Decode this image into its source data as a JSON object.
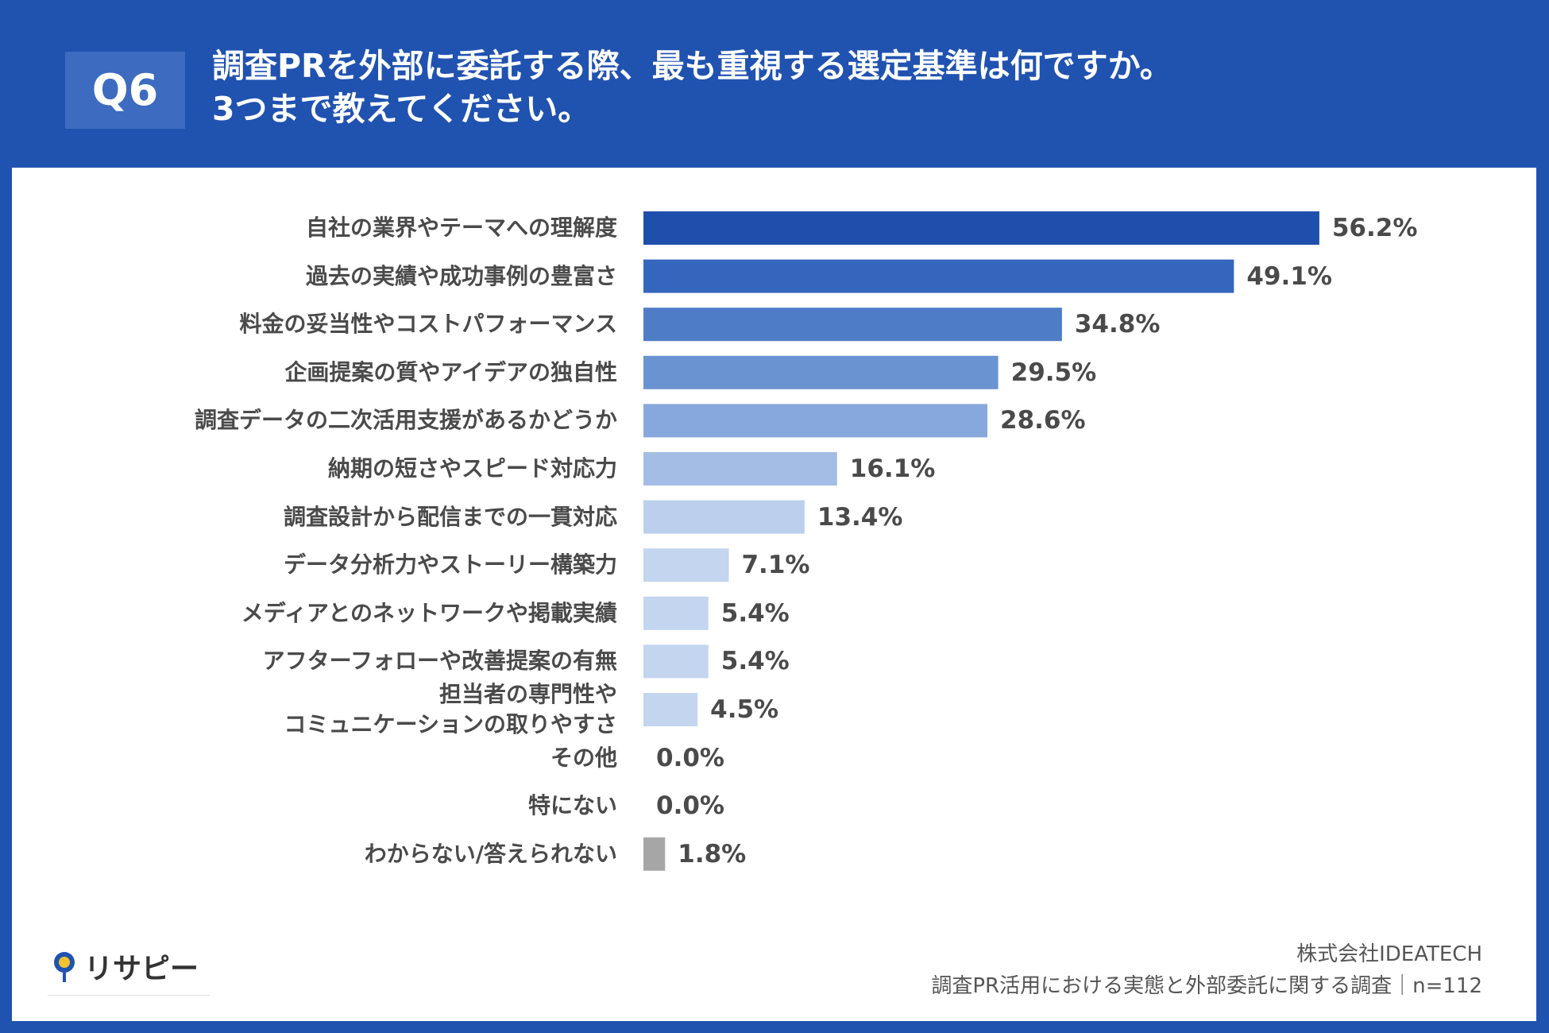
{
  "header": {
    "badge": "Q6",
    "title": "調査PRを外部に委託する際、最も重視する選定基準は何ですか。\n3つまで教えてください。"
  },
  "chart_data": {
    "type": "bar",
    "orientation": "horizontal",
    "categories": [
      "自社の業界やテーマへの理解度",
      "過去の実績や成功事例の豊富さ",
      "料金の妥当性やコストパフォーマンス",
      "企画提案の質やアイデアの独自性",
      "調査データの二次活用支援があるかどうか",
      "納期の短さやスピード対応力",
      "調査設計から配信までの一貫対応",
      "データ分析力やストーリー構築力",
      "メディアとのネットワークや掲載実績",
      "アフターフォローや改善提案の有無",
      "担当者の専門性や\nコミュニケーションの取りやすさ",
      "その他",
      "特にない",
      "わからない/答えられない"
    ],
    "values": [
      56.2,
      49.1,
      34.8,
      29.5,
      28.6,
      16.1,
      13.4,
      7.1,
      5.4,
      5.4,
      4.5,
      0.0,
      0.0,
      1.8
    ],
    "value_labels": [
      "56.2%",
      "49.1%",
      "34.8%",
      "29.5%",
      "28.6%",
      "16.1%",
      "13.4%",
      "7.1%",
      "5.4%",
      "5.4%",
      "4.5%",
      "0.0%",
      "0.0%",
      "1.8%"
    ],
    "colors": [
      "#1f4fad",
      "#3566bd",
      "#4f7cc7",
      "#6a93d2",
      "#87a8dc",
      "#a4bde5",
      "#bcd0ee",
      "#c3d5ef",
      "#c3d5ef",
      "#c3d5ef",
      "#c3d5ef",
      "#c3d5ef",
      "#c3d5ef",
      "#a6a6a6"
    ]
  },
  "footer": {
    "company": "株式会社IDEATECH",
    "survey": "調査PR活用における実態と外部委託に関する調査｜n=112"
  },
  "logo": {
    "text": "リサピー"
  }
}
